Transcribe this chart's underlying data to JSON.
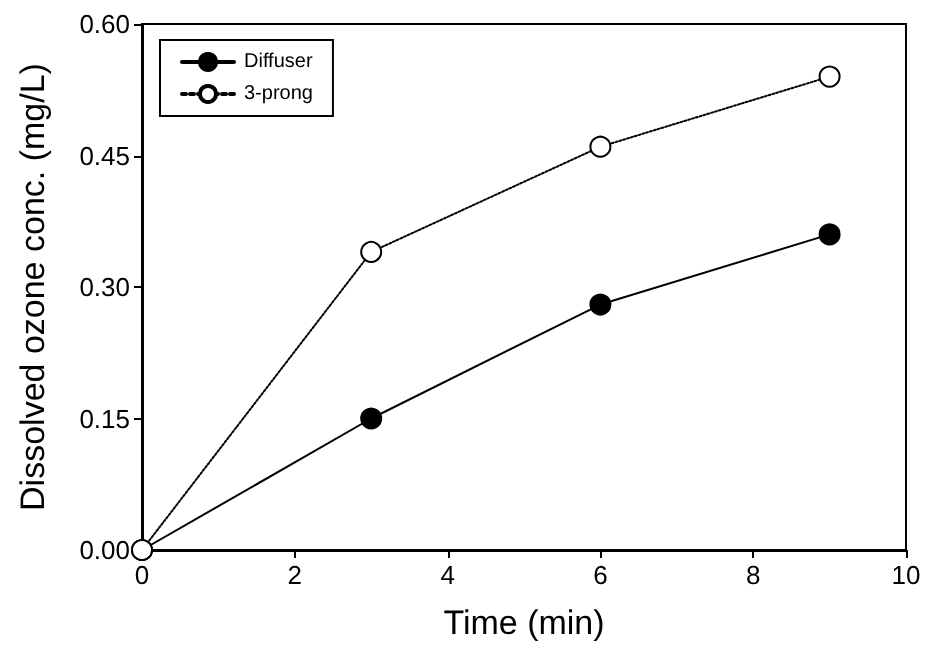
{
  "chart_data": {
    "type": "line",
    "xlabel": "Time (min)",
    "ylabel": "Dissolved ozone conc. (mg/L)",
    "xlim": [
      0,
      10
    ],
    "xticks": [
      0,
      2,
      4,
      6,
      8,
      10
    ],
    "ylim": [
      0,
      0.6
    ],
    "yticks": [
      {
        "value": 0,
        "label": "0.00"
      },
      {
        "value": 0.15,
        "label": "0.15"
      },
      {
        "value": 0.3,
        "label": "0.30"
      },
      {
        "value": 0.45,
        "label": "0.45"
      },
      {
        "value": 0.6,
        "label": "0.60"
      }
    ],
    "legend": "top left",
    "grid": false,
    "marker": "circle",
    "series": [
      {
        "name": "Diffuser",
        "color": "#000000",
        "line_style": "solid",
        "x": [
          0,
          3,
          6,
          9
        ],
        "values": [
          0,
          0.15,
          0.28,
          0.36
        ]
      },
      {
        "name": "3-prong",
        "color": "#ffffff",
        "line_style": "dotted",
        "x": [
          0,
          3,
          6,
          9
        ],
        "values": [
          0,
          0.34,
          0.46,
          0.54
        ]
      }
    ]
  }
}
